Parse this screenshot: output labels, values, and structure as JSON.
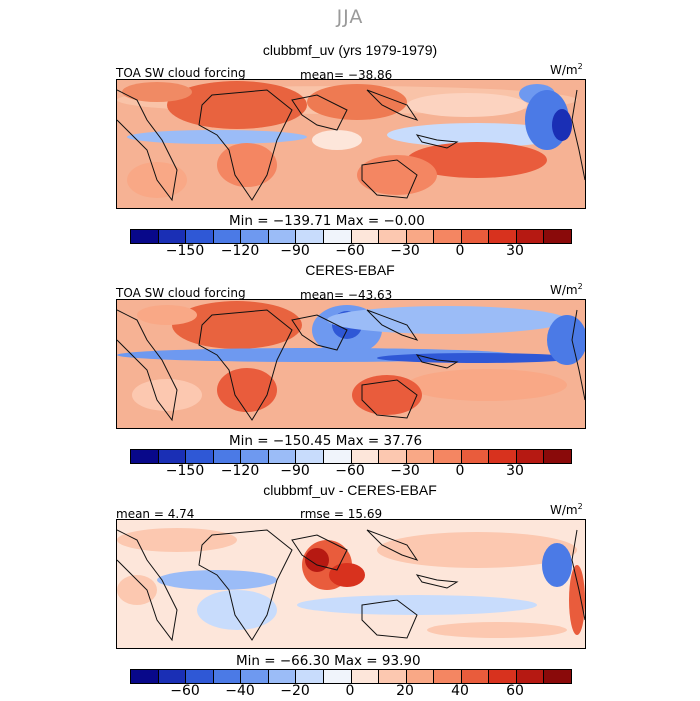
{
  "season": "JJA",
  "panels": [
    {
      "title": "clubbmf_uv (yrs 1979-1979)",
      "left_label": "TOA SW cloud forcing",
      "center_label": "mean= −38.86",
      "unit_base": "W/m",
      "unit_exp": "2",
      "stats": "Min = −139.71 Max =  −0.00",
      "colorbar": {
        "colors": [
          "#08088a",
          "#1a2fb5",
          "#2f58d6",
          "#4b7ae6",
          "#6e99f0",
          "#9bbcf7",
          "#c8dcfc",
          "#f0f4fb",
          "#fde6da",
          "#fcc8b0",
          "#f9a886",
          "#f48662",
          "#e95c3c",
          "#d8321e",
          "#b61912",
          "#8a0a0a"
        ],
        "ticks": [
          "−150",
          "−120",
          "−90",
          "−60",
          "−30",
          "0",
          "30"
        ]
      }
    },
    {
      "title": "CERES-EBAF",
      "left_label": "TOA SW cloud forcing",
      "center_label": "mean= −43.63",
      "unit_base": "W/m",
      "unit_exp": "2",
      "stats": "Min = −150.45 Max =  37.76",
      "colorbar": {
        "colors": [
          "#08088a",
          "#1a2fb5",
          "#2f58d6",
          "#4b7ae6",
          "#6e99f0",
          "#9bbcf7",
          "#c8dcfc",
          "#f0f4fb",
          "#fde6da",
          "#fcc8b0",
          "#f9a886",
          "#f48662",
          "#e95c3c",
          "#d8321e",
          "#b61912",
          "#8a0a0a"
        ],
        "ticks": [
          "−150",
          "−120",
          "−90",
          "−60",
          "−30",
          "0",
          "30"
        ]
      }
    },
    {
      "title": "clubbmf_uv - CERES-EBAF",
      "left_label": "mean =   4.74",
      "center_label": "rmse =  15.69",
      "unit_base": "W/m",
      "unit_exp": "2",
      "stats": "Min = −66.30 Max =  93.90",
      "colorbar": {
        "colors": [
          "#08088a",
          "#1a2fb5",
          "#2f58d6",
          "#4b7ae6",
          "#6e99f0",
          "#9bbcf7",
          "#c8dcfc",
          "#f0f4fb",
          "#fde6da",
          "#fcc8b0",
          "#f9a886",
          "#f48662",
          "#e95c3c",
          "#d8321e",
          "#b61912",
          "#8a0a0a"
        ],
        "ticks": [
          "−60",
          "−40",
          "−20",
          "0",
          "20",
          "40",
          "60"
        ]
      }
    }
  ],
  "chart_data": [
    {
      "type": "heatmap",
      "title": "clubbmf_uv (yrs 1979-1979)",
      "variable": "TOA SW cloud forcing",
      "season": "JJA",
      "units": "W/m2",
      "mean": -38.86,
      "min": -139.71,
      "max": -0.0,
      "colorbar_levels": [
        -150,
        -120,
        -90,
        -60,
        -30,
        0,
        30
      ]
    },
    {
      "type": "heatmap",
      "title": "CERES-EBAF",
      "variable": "TOA SW cloud forcing",
      "season": "JJA",
      "units": "W/m2",
      "mean": -43.63,
      "min": -150.45,
      "max": 37.76,
      "colorbar_levels": [
        -150,
        -120,
        -90,
        -60,
        -30,
        0,
        30
      ]
    },
    {
      "type": "heatmap",
      "title": "clubbmf_uv - CERES-EBAF",
      "season": "JJA",
      "units": "W/m2",
      "mean": 4.74,
      "rmse": 15.69,
      "min": -66.3,
      "max": 93.9,
      "colorbar_levels": [
        -60,
        -40,
        -20,
        0,
        20,
        40,
        60
      ]
    }
  ]
}
